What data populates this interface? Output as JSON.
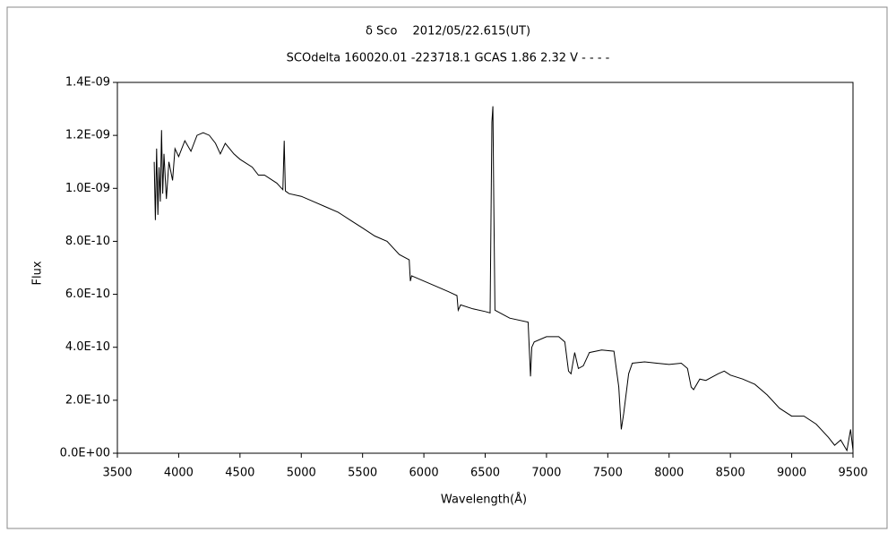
{
  "chart_data": {
    "type": "line",
    "title": "δ Sco　 2012/05/22.615(UT)",
    "subtitle": "SCOdelta 160020.01 -223718.1 GCAS 1.86 2.32 V - - - -",
    "x_label": "Wavelength(Å)",
    "y_label": "Flux",
    "xlim": [
      3500,
      9500
    ],
    "xticks": [
      3500,
      4000,
      4500,
      5000,
      5500,
      6000,
      6500,
      7000,
      7500,
      8000,
      8500,
      9000,
      9500
    ],
    "ylim": [
      0,
      1.4e-09
    ],
    "yticks": [
      {
        "value": 0,
        "label": "0.0E+00"
      },
      {
        "value": 2e-10,
        "label": "2.0E-10"
      },
      {
        "value": 4e-10,
        "label": "4.0E-10"
      },
      {
        "value": 6e-10,
        "label": "6.0E-10"
      },
      {
        "value": 8e-10,
        "label": "8.0E-10"
      },
      {
        "value": 1e-09,
        "label": "1.0E-09"
      },
      {
        "value": 1.2e-09,
        "label": "1.2E-09"
      },
      {
        "value": 1.4e-09,
        "label": "1.4E-09"
      }
    ],
    "grid": false,
    "series": [
      {
        "name": "Flux",
        "color": "#000000",
        "x": [
          3800,
          3810,
          3820,
          3830,
          3840,
          3850,
          3860,
          3870,
          3880,
          3900,
          3920,
          3950,
          3970,
          4000,
          4050,
          4100,
          4150,
          4200,
          4250,
          4300,
          4340,
          4380,
          4450,
          4500,
          4600,
          4650,
          4700,
          4800,
          4850,
          4861,
          4870,
          4900,
          5000,
          5100,
          5200,
          5300,
          5400,
          5500,
          5600,
          5700,
          5800,
          5880,
          5890,
          5900,
          6000,
          6100,
          6200,
          6270,
          6280,
          6300,
          6400,
          6500,
          6540,
          6555,
          6563,
          6570,
          6580,
          6700,
          6850,
          6870,
          6880,
          6900,
          7000,
          7100,
          7150,
          7180,
          7200,
          7230,
          7260,
          7300,
          7350,
          7450,
          7550,
          7590,
          7610,
          7630,
          7670,
          7700,
          7800,
          7900,
          8000,
          8100,
          8150,
          8180,
          8200,
          8250,
          8300,
          8400,
          8450,
          8500,
          8600,
          8700,
          8800,
          8900,
          9000,
          9100,
          9200,
          9300,
          9350,
          9400,
          9450,
          9480,
          9500
        ],
        "values": [
          1.1e-09,
          8.8e-10,
          1.15e-09,
          9e-10,
          1.08e-09,
          9.5e-10,
          1.22e-09,
          9.8e-10,
          1.13e-09,
          9.6e-10,
          1.1e-09,
          1.03e-09,
          1.15e-09,
          1.12e-09,
          1.18e-09,
          1.14e-09,
          1.2e-09,
          1.21e-09,
          1.2e-09,
          1.17e-09,
          1.13e-09,
          1.17e-09,
          1.13e-09,
          1.11e-09,
          1.08e-09,
          1.05e-09,
          1.05e-09,
          1.02e-09,
          9.95e-10,
          1.18e-09,
          9.9e-10,
          9.8e-10,
          9.7e-10,
          9.5e-10,
          9.3e-10,
          9.1e-10,
          8.8e-10,
          8.5e-10,
          8.2e-10,
          8e-10,
          7.5e-10,
          7.3e-10,
          6.5e-10,
          6.7e-10,
          6.5e-10,
          6.3e-10,
          6.1e-10,
          5.95e-10,
          5.4e-10,
          5.6e-10,
          5.45e-10,
          5.35e-10,
          5.3e-10,
          1.25e-09,
          1.31e-09,
          9.5e-10,
          5.4e-10,
          5.1e-10,
          4.95e-10,
          2.9e-10,
          4e-10,
          4.2e-10,
          4.4e-10,
          4.4e-10,
          4.2e-10,
          3.1e-10,
          3e-10,
          3.8e-10,
          3.2e-10,
          3.3e-10,
          3.8e-10,
          3.9e-10,
          3.85e-10,
          2.5e-10,
          9e-11,
          1.5e-10,
          3e-10,
          3.4e-10,
          3.45e-10,
          3.4e-10,
          3.35e-10,
          3.4e-10,
          3.2e-10,
          2.5e-10,
          2.4e-10,
          2.8e-10,
          2.75e-10,
          3e-10,
          3.1e-10,
          2.95e-10,
          2.8e-10,
          2.6e-10,
          2.2e-10,
          1.7e-10,
          1.4e-10,
          1.4e-10,
          1.1e-10,
          6e-11,
          3e-11,
          5e-11,
          1e-11,
          9e-11,
          1e-11
        ]
      }
    ]
  }
}
